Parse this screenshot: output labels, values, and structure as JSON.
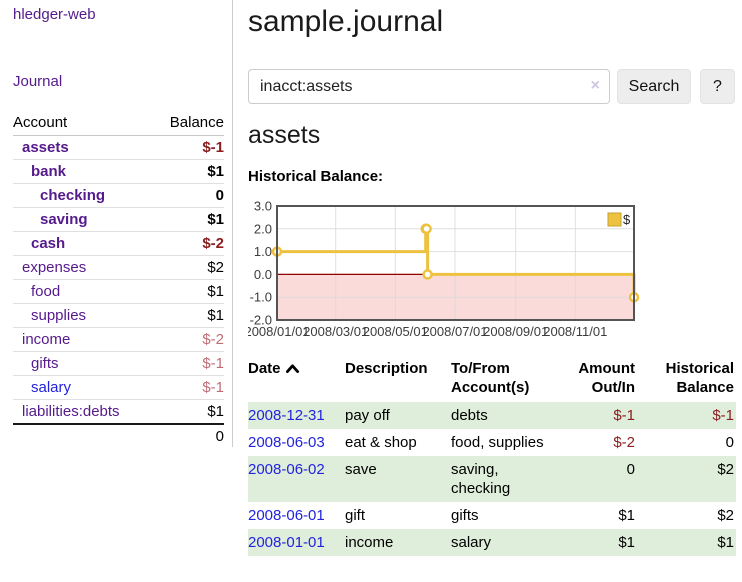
{
  "colors": {
    "link_purple": "#551a8b",
    "link_blue": "#2323dc",
    "negative_strong": "#8b1e20",
    "negative_soft": "#bf6d77",
    "row_shade_green": "#dfeeda",
    "chart_gold": "#edc240"
  },
  "sidebar": {
    "app_title": "hledger-web",
    "nav": {
      "journal": "Journal"
    },
    "accounts_table": {
      "headers": {
        "account": "Account",
        "balance": "Balance"
      },
      "rows": [
        {
          "name": "assets",
          "level": 1,
          "bold": true,
          "color": "purple",
          "balance": "$-1",
          "tone": "neg-strong"
        },
        {
          "name": "bank",
          "level": 2,
          "bold": true,
          "color": "purple",
          "balance": "$1",
          "tone": ""
        },
        {
          "name": "checking",
          "level": 3,
          "bold": true,
          "color": "purple",
          "balance": "0",
          "tone": ""
        },
        {
          "name": "saving",
          "level": 3,
          "bold": true,
          "color": "purple",
          "balance": "$1",
          "tone": ""
        },
        {
          "name": "cash",
          "level": 2,
          "bold": true,
          "color": "purple",
          "balance": "$-2",
          "tone": "neg-strong"
        },
        {
          "name": "expenses",
          "level": 1,
          "bold": false,
          "color": "purple",
          "balance": "$2",
          "tone": ""
        },
        {
          "name": "food",
          "level": 2,
          "bold": false,
          "color": "purple",
          "balance": "$1",
          "tone": ""
        },
        {
          "name": "supplies",
          "level": 2,
          "bold": false,
          "color": "purple",
          "balance": "$1",
          "tone": ""
        },
        {
          "name": "income",
          "level": 1,
          "bold": false,
          "color": "purple",
          "balance": "$-2",
          "tone": "neg-soft"
        },
        {
          "name": "gifts",
          "level": 2,
          "bold": false,
          "color": "purple",
          "balance": "$-1",
          "tone": "neg-soft"
        },
        {
          "name": "salary",
          "level": 2,
          "bold": false,
          "color": "blue",
          "balance": "$-1",
          "tone": "neg-soft"
        },
        {
          "name": "liabilities:debts",
          "level": 1,
          "bold": false,
          "color": "purple",
          "balance": "$1",
          "tone": ""
        }
      ],
      "total": "0"
    }
  },
  "header": {
    "title": "sample.journal"
  },
  "search": {
    "query": "inacct:assets",
    "clear_label": "×",
    "button_label": "Search",
    "help_label": "?"
  },
  "account_page": {
    "heading": "assets",
    "chart_title": "Historical Balance:"
  },
  "chart_data": {
    "type": "line",
    "step": true,
    "title": "Historical Balance:",
    "series": [
      {
        "name": "$",
        "color": "#edc240",
        "points": [
          {
            "x": "2008-01-01",
            "y": 1
          },
          {
            "x": "2008-06-01",
            "y": 2
          },
          {
            "x": "2008-06-02",
            "y": 2
          },
          {
            "x": "2008-06-03",
            "y": 0
          },
          {
            "x": "2008-12-31",
            "y": -1
          }
        ]
      }
    ],
    "xrange": [
      "2008-01-01",
      "2008-12-31"
    ],
    "ylim": [
      -2,
      3
    ],
    "yticks": [
      3.0,
      2.0,
      1.0,
      0.0,
      -1.0,
      -2.0
    ],
    "xticks": [
      "2008-01-01",
      "2008-03-01",
      "2008-05-01",
      "2008-07-01",
      "2008-09-01",
      "2008-11-01"
    ],
    "xtick_labels": [
      "2008/01/01",
      "2008/03/01",
      "2008/05/01",
      "2008/07/01",
      "2008/09/01",
      "2008/11/01"
    ],
    "grid": true,
    "legend_position": "top-right",
    "negative_region_color": "#fbdada",
    "zero_line_color": "#8b0000"
  },
  "register_table": {
    "headers": {
      "date": "Date",
      "description": "Description",
      "accounts": "To/From Account(s)",
      "amount": "Amount Out/In",
      "balance": "Historical Balance"
    },
    "sort": {
      "column": "date",
      "direction": "ascending"
    },
    "rows": [
      {
        "date": "2008-12-31",
        "description": "pay off",
        "accounts": "debts",
        "amount": "$-1",
        "amount_negative": true,
        "balance": "$-1",
        "balance_negative": true
      },
      {
        "date": "2008-06-03",
        "description": "eat & shop",
        "accounts": "food, supplies",
        "amount": "$-2",
        "amount_negative": true,
        "balance": "0",
        "balance_negative": false
      },
      {
        "date": "2008-06-02",
        "description": "save",
        "accounts": "saving, checking",
        "amount": "0",
        "amount_negative": false,
        "balance": "$2",
        "balance_negative": false
      },
      {
        "date": "2008-06-01",
        "description": "gift",
        "accounts": "gifts",
        "amount": "$1",
        "amount_negative": false,
        "balance": "$2",
        "balance_negative": false
      },
      {
        "date": "2008-01-01",
        "description": "income",
        "accounts": "salary",
        "amount": "$1",
        "amount_negative": false,
        "balance": "$1",
        "balance_negative": false
      }
    ]
  }
}
